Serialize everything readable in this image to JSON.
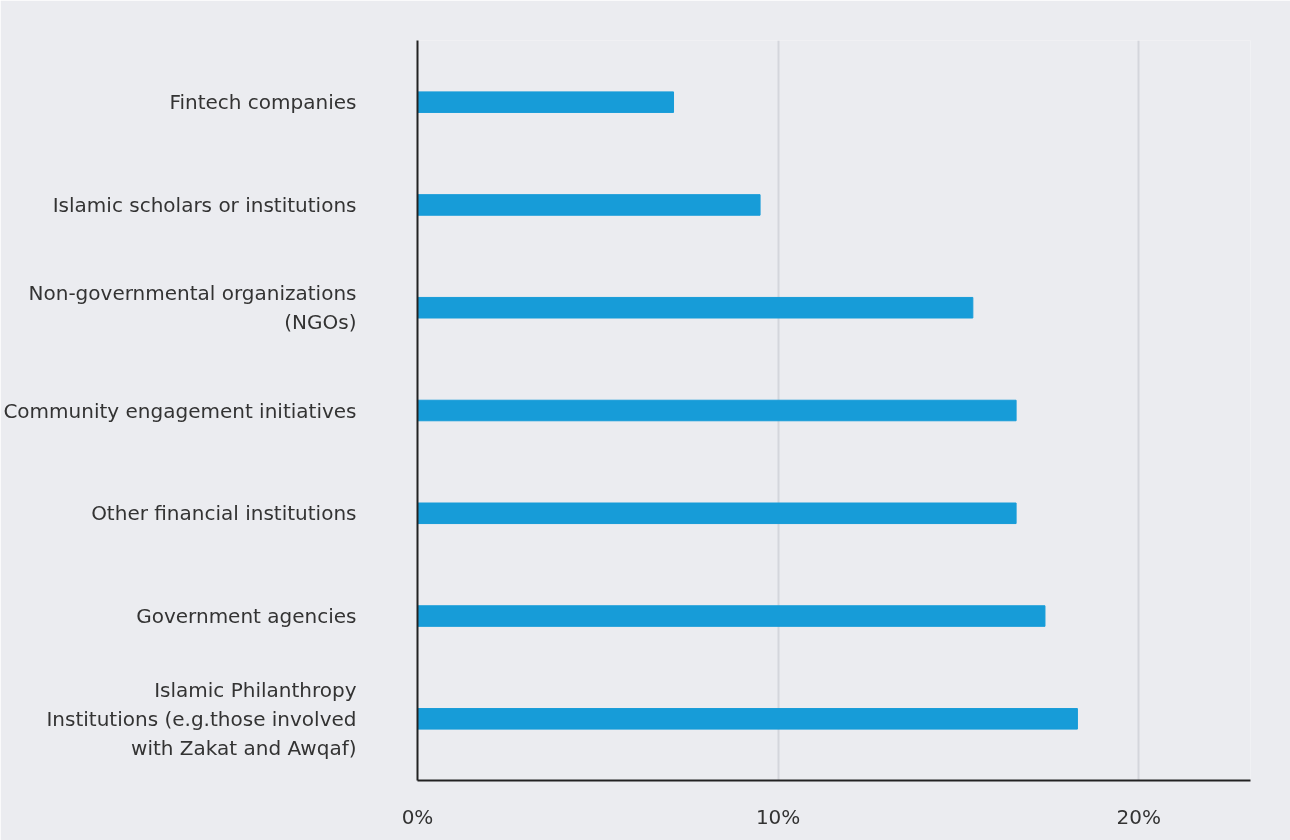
{
  "chart_data": {
    "type": "bar",
    "orientation": "horizontal",
    "categories": [
      "Fintech companies",
      "Islamic scholars or institutions",
      "Non-governmental organizations (NGOs)",
      "Community engagement initiatives",
      "Other financial institutions",
      "Government agencies",
      "Islamic Philanthropy Institutions (e.g.those involved with Zakat and Awqaf)"
    ],
    "values": [
      7.1,
      9.5,
      15.4,
      16.6,
      16.6,
      17.4,
      18.3
    ],
    "color": "#179cd8",
    "xlim": [
      0,
      23.1
    ],
    "xticks": [
      {
        "value": 0,
        "label": "0%"
      },
      {
        "value": 10,
        "label": "10%"
      },
      {
        "value": 20,
        "label": "20%"
      }
    ],
    "grid": "x"
  }
}
